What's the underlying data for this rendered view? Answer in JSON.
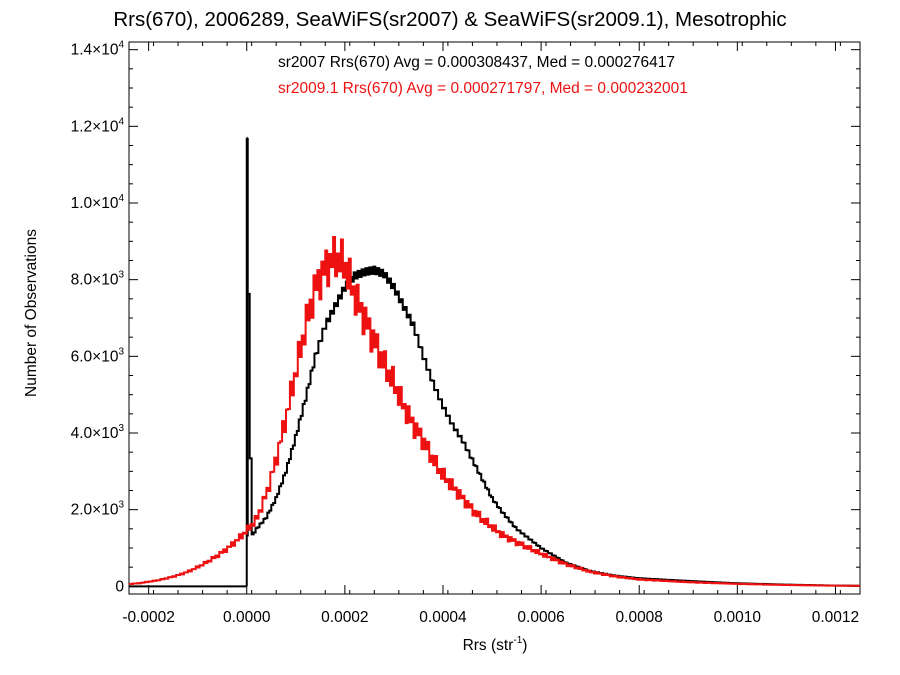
{
  "chart_data": {
    "type": "line",
    "style": "step-histogram",
    "title": "Rrs(670), 2006289, SeaWiFS(sr2007) & SeaWiFS(sr2009.1), Mesotrophic",
    "xlabel": "Rrs (str",
    "xlabel_exponent": "-1",
    "xlabel_close": ")",
    "ylabel": "Number of Observations",
    "xlim": [
      -0.00024,
      0.00125
    ],
    "ylim": [
      -200,
      14200
    ],
    "x_ticks": [
      "-0.0002",
      "0.0000",
      "0.0002",
      "0.0004",
      "0.0006",
      "0.0008",
      "0.0010",
      "0.0012"
    ],
    "x_tick_values": [
      -0.0002,
      0.0,
      0.0002,
      0.0004,
      0.0006,
      0.0008,
      0.001,
      0.0012
    ],
    "y_ticks": [
      {
        "value": 0,
        "mantissa": "0",
        "exponent": ""
      },
      {
        "value": 2000,
        "mantissa": "2.0×10",
        "exponent": "3"
      },
      {
        "value": 4000,
        "mantissa": "4.0×10",
        "exponent": "3"
      },
      {
        "value": 6000,
        "mantissa": "6.0×10",
        "exponent": "3"
      },
      {
        "value": 8000,
        "mantissa": "8.0×10",
        "exponent": "3"
      },
      {
        "value": 10000,
        "mantissa": "1.0×10",
        "exponent": "4"
      },
      {
        "value": 12000,
        "mantissa": "1.2×10",
        "exponent": "4"
      },
      {
        "value": 14000,
        "mantissa": "1.4×10",
        "exponent": "4"
      }
    ],
    "annotations": [
      "sr2007 Rrs(670) Avg = 0.000308437, Med = 0.000276417",
      "sr2009.1 Rrs(670) Avg = 0.000271797, Med = 0.000232001"
    ],
    "grid": false,
    "series": [
      {
        "name": "sr2007",
        "color": "#000000",
        "x": [
          -0.00024,
          -1e-06,
          0.0,
          1e-05,
          2e-05,
          4e-05,
          6e-05,
          8e-05,
          0.0001,
          0.00012,
          0.00014,
          0.00016,
          0.00018,
          0.0002,
          0.00022,
          0.00024,
          0.00026,
          0.00028,
          0.0003,
          0.00032,
          0.00034,
          0.00036,
          0.00038,
          0.0004,
          0.00042,
          0.00044,
          0.00046,
          0.00048,
          0.0005,
          0.00052,
          0.00055,
          0.0006,
          0.00065,
          0.0007,
          0.00075,
          0.0008,
          0.0009,
          0.001,
          0.0011,
          0.0012,
          0.00125
        ],
        "y": [
          0,
          0,
          11700,
          1300,
          1500,
          1800,
          2300,
          3000,
          3900,
          4900,
          6000,
          6800,
          7300,
          7800,
          8100,
          8200,
          8250,
          8150,
          7800,
          7300,
          6800,
          6000,
          5300,
          4700,
          4200,
          3800,
          3300,
          2800,
          2300,
          1950,
          1500,
          1000,
          620,
          400,
          280,
          210,
          140,
          80,
          45,
          20,
          15
        ]
      },
      {
        "name": "sr2009.1",
        "color": "#ee1111",
        "x": [
          -0.00024,
          -0.00022,
          -0.0002,
          -0.00018,
          -0.00016,
          -0.00014,
          -0.00012,
          -0.0001,
          -8e-05,
          -6e-05,
          -4e-05,
          -2e-05,
          0.0,
          2e-05,
          4e-05,
          6e-05,
          8e-05,
          0.0001,
          0.00012,
          0.00014,
          0.00016,
          0.00018,
          0.0002,
          0.00022,
          0.00024,
          0.00026,
          0.00028,
          0.0003,
          0.00032,
          0.00034,
          0.00036,
          0.00038,
          0.0004,
          0.00042,
          0.00044,
          0.00046,
          0.00048,
          0.0005,
          0.00052,
          0.00055,
          0.0006,
          0.00065,
          0.0007,
          0.00075,
          0.0008,
          0.0009,
          0.001,
          0.0011,
          0.0012,
          0.00125
        ],
        "y": [
          60,
          80,
          120,
          160,
          220,
          290,
          380,
          500,
          640,
          800,
          980,
          1200,
          1450,
          1750,
          2400,
          3300,
          4400,
          5600,
          6800,
          7800,
          8300,
          8600,
          8400,
          7600,
          7000,
          6400,
          5800,
          5300,
          4700,
          4200,
          3800,
          3300,
          2900,
          2600,
          2300,
          2000,
          1750,
          1550,
          1350,
          1150,
          850,
          580,
          380,
          260,
          180,
          110,
          65,
          35,
          18,
          12
        ]
      }
    ]
  }
}
